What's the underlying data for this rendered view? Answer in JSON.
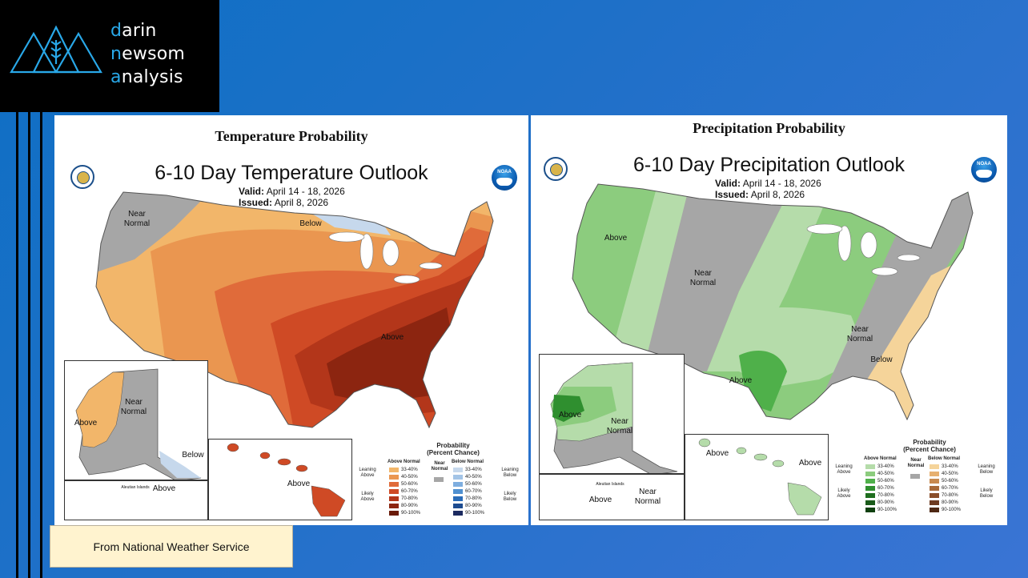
{
  "brand": {
    "line1_first": "d",
    "line1_rest": "arin",
    "line2_first": "n",
    "line2_rest": "ewsom",
    "line3_first": "a",
    "line3_rest": "nalysis"
  },
  "temperature": {
    "panel_title": "Temperature Probability",
    "map_title": "6-10 Day Temperature Outlook",
    "valid_label": "Valid:",
    "valid_value": "April 14 - 18, 2026",
    "issued_label": "Issued:",
    "issued_value": "April 8, 2026",
    "labels": {
      "near_normal": "Near Normal",
      "below": "Below",
      "above": "Above",
      "ak_above": "Above",
      "ak_near": "Near Normal",
      "ak_below": "Below",
      "aleutian": "Aleutian Islands",
      "aleutian_above": "Above",
      "hi_above": "Above"
    },
    "colors": {
      "near": "#a6a6a6",
      "below33": "#c6d8ec",
      "a33": "#f2b66a",
      "a40": "#ea9650",
      "a50": "#e06b3a",
      "a60": "#cf4a25",
      "a70": "#b3361a",
      "a80": "#8c2510"
    }
  },
  "precipitation": {
    "panel_title": "Precipitation Probability",
    "map_title": "6-10 Day Precipitation Outlook",
    "valid_label": "Valid:",
    "valid_value": "April 14 - 18, 2026",
    "issued_label": "Issued:",
    "issued_value": "April 8, 2026",
    "labels": {
      "above": "Above",
      "near_normal": "Near Normal",
      "above_south": "Above",
      "near_normal_east": "Near Normal",
      "below": "Below",
      "ak_above": "Above",
      "ak_near": "Near Normal",
      "aleutian": "Aleutian Islands",
      "aleutian_above": "Above",
      "aleutian_near": "Near Normal",
      "hi_above_left": "Above",
      "hi_above_right": "Above"
    },
    "colors": {
      "near": "#a6a6a6",
      "a33": "#b5dcaa",
      "a40": "#8ccc7e",
      "a50": "#4fb04a",
      "a60": "#2f8f2f",
      "b33": "#f5d49a"
    }
  },
  "legend": {
    "title": "Probability",
    "subtitle": "(Percent Chance)",
    "above_header": "Above Normal",
    "below_header": "Below Normal",
    "near_label": "Near Normal",
    "leaning_above": "Leaning Above",
    "likely_above": "Likely Above",
    "leaning_below": "Leaning Below",
    "likely_below": "Likely Below",
    "ranges": [
      "33-40%",
      "40-50%",
      "50-60%",
      "60-70%",
      "70-80%",
      "80-90%",
      "90-100%"
    ],
    "temp_above_colors": [
      "#f2b66a",
      "#ea9650",
      "#e06b3a",
      "#cf4a25",
      "#b3361a",
      "#8c2510",
      "#6a1a08"
    ],
    "temp_below_colors": [
      "#c6d8ec",
      "#a3c4e6",
      "#7eaedf",
      "#4f90d0",
      "#2a6cb8",
      "#1d4c90",
      "#1b2a60"
    ],
    "precip_above_colors": [
      "#b5dcaa",
      "#8ccc7e",
      "#4fb04a",
      "#2f8f2f",
      "#1f6e1f",
      "#195a19",
      "#0f400f"
    ],
    "precip_below_colors": [
      "#f5d49a",
      "#e6b070",
      "#c88a50",
      "#a86a3a",
      "#8a4e2a",
      "#6e3a20",
      "#4e2814"
    ],
    "near_color": "#a6a6a6"
  },
  "credit": "From National Weather Service"
}
